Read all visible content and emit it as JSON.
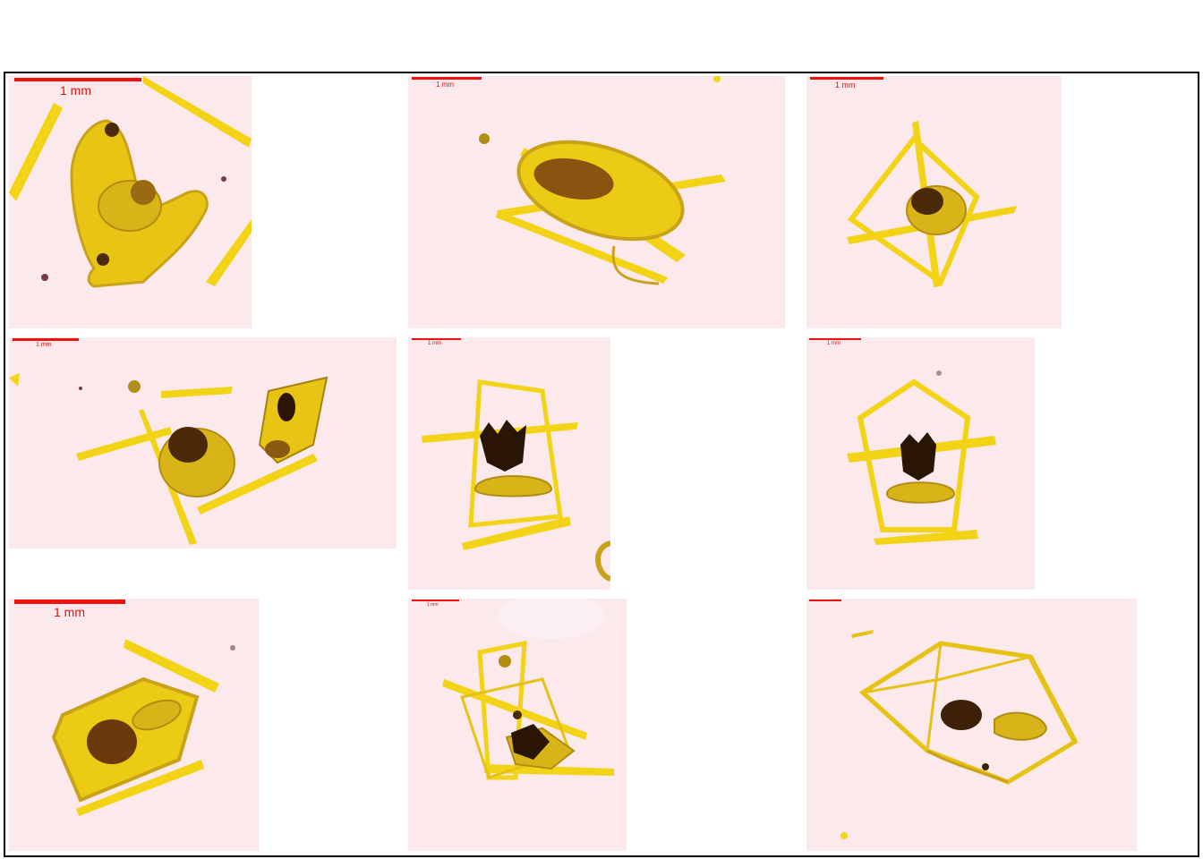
{
  "colors": {
    "background": "#fbe9ec",
    "scale_bar": "#ee1111",
    "body_yellow": "#f2d316",
    "body_amber": "#c9a21a",
    "gut_dark": "#3a1e08"
  },
  "panels": [
    {
      "scale_label": "1 mm"
    },
    {
      "scale_label": "1 mm"
    },
    {
      "scale_label": "1 mm"
    },
    {
      "scale_label": "1 mm"
    },
    {
      "scale_label": "1 mm"
    },
    {
      "scale_label": "1 mm"
    },
    {
      "scale_label": "1 mm"
    },
    {
      "scale_label": "1 mm"
    },
    {
      "scale_label": ""
    }
  ]
}
